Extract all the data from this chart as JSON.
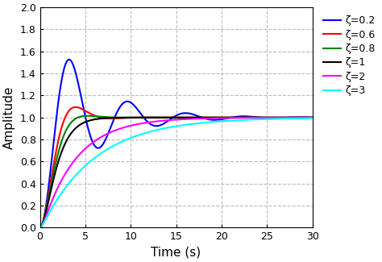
{
  "xlabel": "Time (s)",
  "ylabel": "Amplitude",
  "xlim": [
    0,
    30
  ],
  "ylim": [
    0.0,
    2.0
  ],
  "xticks": [
    0,
    5,
    10,
    15,
    20,
    25,
    30
  ],
  "yticks": [
    0.0,
    0.2,
    0.4,
    0.6,
    0.8,
    1.0,
    1.2,
    1.4,
    1.6,
    1.8,
    2.0
  ],
  "omega_n": 1.0,
  "zetas": [
    0.2,
    0.6,
    0.8,
    1.0,
    2.0,
    3.0
  ],
  "colors": [
    "blue",
    "red",
    "green",
    "black",
    "magenta",
    "cyan"
  ],
  "labels": [
    "ζ=0.2",
    "ζ=0.6",
    "ζ=0.8",
    "ζ=1",
    "ζ=2",
    "ζ=3"
  ],
  "linewidth": 1.5,
  "grid_color": "#bbbbbb",
  "grid_linestyle": "--",
  "grid_alpha": 1.0,
  "background_color": "#ffffff",
  "legend_fontsize": 9,
  "axis_label_fontsize": 11,
  "tick_fontsize": 9
}
